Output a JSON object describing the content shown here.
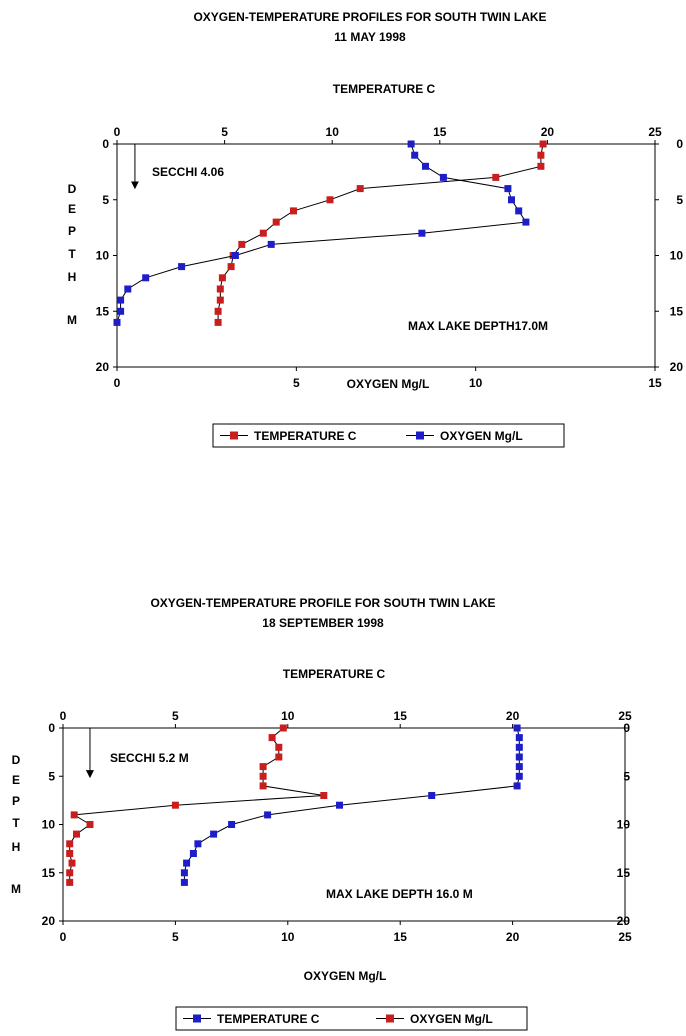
{
  "chart_data": [
    {
      "type": "line",
      "title": "OXYGEN-TEMPERATURE PROFILES FOR SOUTH TWIN LAKE",
      "subtitle": "11 MAY 1998",
      "top_axis_label": "TEMPERATURE C",
      "bottom_axis_label": "OXYGEN Mg/L",
      "depth_label_letters": [
        "D",
        "E",
        "P",
        "T",
        "H",
        "M"
      ],
      "top_xlim": [
        0,
        25
      ],
      "bottom_xlim": [
        0,
        15
      ],
      "top_ticks": [
        "0",
        "5",
        "10",
        "15",
        "20",
        "25"
      ],
      "bottom_ticks": [
        "0",
        "5",
        "10",
        "15"
      ],
      "ylim": [
        0,
        20
      ],
      "y_ticks": [
        "0",
        "5",
        "10",
        "15",
        "20"
      ],
      "y_reversed": true,
      "grid": false,
      "legend_position": "bottom-center",
      "annotations": {
        "secchi": "SECCHI 4.06",
        "secchi_depth": 4.06,
        "secchi_x": 0.5,
        "secchi_axis": "bottom",
        "max_depth": "MAX LAKE DEPTH17.0M"
      },
      "series": [
        {
          "name": "TEMPERATURE C",
          "axis": "top",
          "color": "#c81e1e",
          "depth": [
            0,
            1,
            2,
            3,
            4,
            5,
            6,
            7,
            8,
            9,
            10,
            11,
            12,
            13,
            14,
            15,
            16
          ],
          "values": [
            19.8,
            19.7,
            19.7,
            17.6,
            11.3,
            9.9,
            8.2,
            7.4,
            6.8,
            5.8,
            5.4,
            5.3,
            4.9,
            4.8,
            4.8,
            4.7,
            4.7
          ]
        },
        {
          "name": "OXYGEN Mg/L",
          "axis": "bottom",
          "color": "#1e1ec8",
          "depth": [
            0,
            1,
            2,
            3,
            4,
            5,
            6,
            7,
            8,
            9,
            10,
            11,
            12,
            13,
            14,
            15,
            16
          ],
          "values": [
            8.2,
            8.3,
            8.6,
            9.1,
            10.9,
            11.0,
            11.2,
            11.4,
            8.5,
            4.3,
            3.3,
            1.8,
            0.8,
            0.3,
            0.1,
            0.1,
            0.0
          ]
        }
      ]
    },
    {
      "type": "line",
      "title": "OXYGEN-TEMPERATURE PROFILE FOR SOUTH TWIN LAKE",
      "subtitle": "18 SEPTEMBER 1998",
      "top_axis_label": "TEMPERATURE C",
      "bottom_axis_label": "OXYGEN Mg/L",
      "depth_label_letters": [
        "D",
        "E",
        "P",
        "T",
        "H",
        "M"
      ],
      "top_xlim": [
        0,
        25
      ],
      "bottom_xlim": [
        0,
        25
      ],
      "top_ticks": [
        "0",
        "5",
        "10",
        "15",
        "20",
        "25"
      ],
      "bottom_ticks": [
        "0",
        "5",
        "10",
        "15",
        "20",
        "25"
      ],
      "ylim": [
        0,
        20
      ],
      "y_ticks": [
        "0",
        "5",
        "10",
        "15",
        "20"
      ],
      "y_reversed": true,
      "grid": false,
      "legend_position": "bottom-center",
      "annotations": {
        "secchi": "SECCHI 5.2 M",
        "secchi_depth": 5.2,
        "secchi_x": 1.2,
        "secchi_axis": "top",
        "max_depth": "MAX LAKE DEPTH 16.0 M"
      },
      "series": [
        {
          "name": "TEMPERATURE C",
          "axis": "top",
          "color": "#1e1ec8",
          "depth": [
            0,
            1,
            2,
            3,
            4,
            5,
            6,
            7,
            8,
            9,
            10,
            11,
            12,
            13,
            14,
            15,
            16
          ],
          "values": [
            20.2,
            20.3,
            20.3,
            20.3,
            20.3,
            20.3,
            20.2,
            16.4,
            12.3,
            9.1,
            7.5,
            6.7,
            6.0,
            5.8,
            5.5,
            5.4,
            5.4
          ]
        },
        {
          "name": "OXYGEN Mg/L",
          "axis": "bottom",
          "color": "#c81e1e",
          "depth": [
            0,
            1,
            2,
            3,
            4,
            5,
            6,
            7,
            8,
            9,
            10,
            11,
            12,
            13,
            14,
            15,
            16
          ],
          "values": [
            9.8,
            9.3,
            9.6,
            9.6,
            8.9,
            8.9,
            8.9,
            11.6,
            5.0,
            0.5,
            1.2,
            0.6,
            0.3,
            0.3,
            0.4,
            0.3,
            0.3
          ]
        }
      ]
    }
  ]
}
